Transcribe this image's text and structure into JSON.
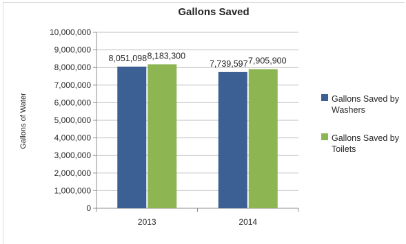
{
  "chart_data": {
    "type": "bar",
    "title": "Gallons Saved",
    "xlabel": "",
    "ylabel": "Gallons of Water",
    "categories": [
      "2013",
      "2014"
    ],
    "series": [
      {
        "name": "Gallons Saved by Washers",
        "legend_lines": [
          "Gallons Saved by",
          "Washers"
        ],
        "color": "#3c5f94",
        "values": [
          8051098,
          7739597
        ],
        "labels": [
          "8,051,098",
          "7,739,597"
        ]
      },
      {
        "name": "Gallons Saved by Toilets",
        "legend_lines": [
          "Gallons Saved by",
          "Toilets"
        ],
        "color": "#8db653",
        "values": [
          8183300,
          7905900
        ],
        "labels": [
          "8,183,300",
          "7,905,900"
        ]
      }
    ],
    "ylim": [
      0,
      10000000
    ],
    "yticks": [
      0,
      1000000,
      2000000,
      3000000,
      4000000,
      5000000,
      6000000,
      7000000,
      8000000,
      9000000,
      10000000
    ],
    "ytick_labels": [
      "0",
      "1,000,000",
      "2,000,000",
      "3,000,000",
      "4,000,000",
      "5,000,000",
      "6,000,000",
      "7,000,000",
      "8,000,000",
      "9,000,000",
      "10,000,000"
    ],
    "grid": true,
    "legend_position": "right"
  }
}
